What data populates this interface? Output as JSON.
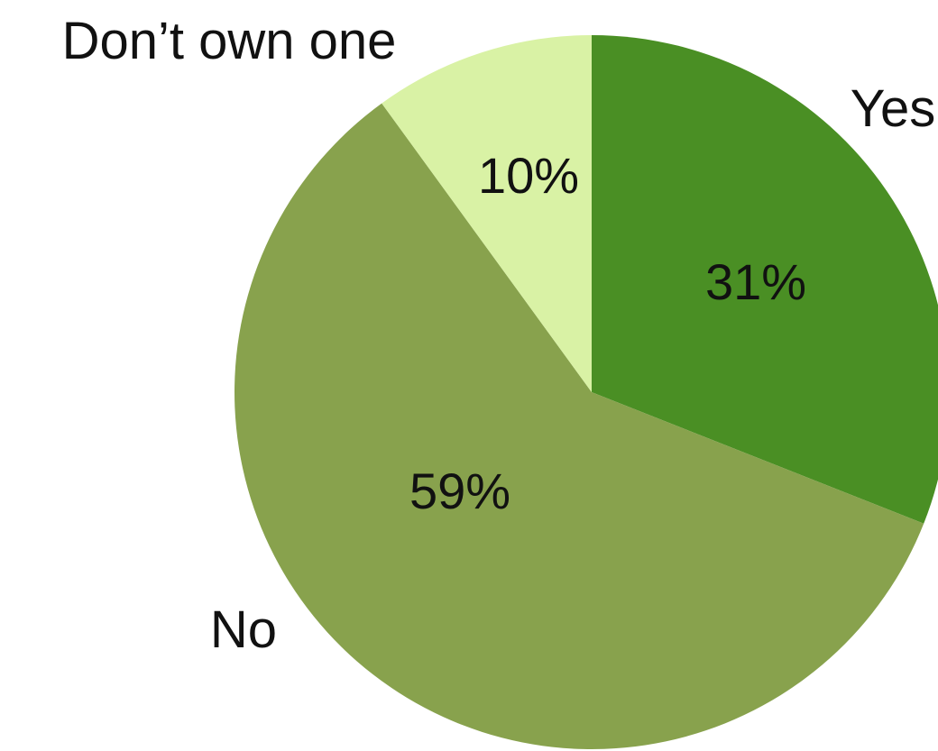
{
  "chart_data": {
    "type": "pie",
    "slices": [
      {
        "label": "Yes",
        "value": 31,
        "display": "31%",
        "color": "#4a8f24"
      },
      {
        "label": "No",
        "value": 59,
        "display": "59%",
        "color": "#88a24d"
      },
      {
        "label": "Don’t own one",
        "value": 10,
        "display": "10%",
        "color": "#d9f2a5"
      }
    ]
  }
}
